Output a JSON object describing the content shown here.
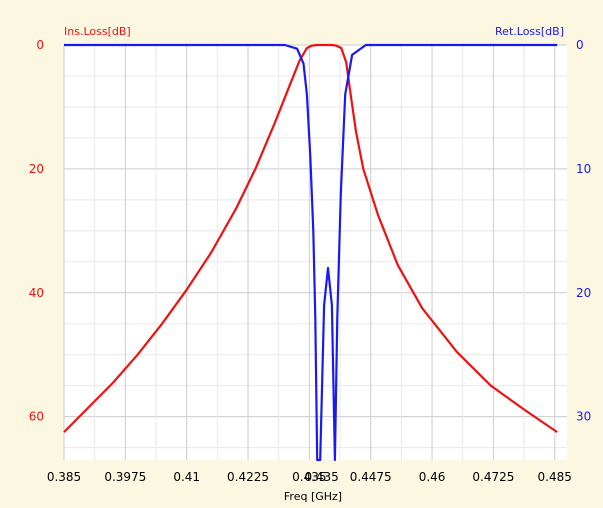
{
  "colors": {
    "background": "#fcf7e1",
    "plot_area": "#ffffff",
    "grid_major": "#cccccc",
    "grid_minor": "#e8e8e8",
    "ins_loss": "#ee1111",
    "ret_loss": "#1a1aee",
    "x_tick_text": "#000000"
  },
  "chart_data": {
    "type": "line",
    "title": "",
    "xlabel": "Freq [GHz]",
    "ylabel_left": "Ins.Loss[dB]",
    "ylabel_right": "Ret.Loss[dB]",
    "xlim": [
      0.385,
      0.4875
    ],
    "ylim_left": [
      0,
      67
    ],
    "ylim_right": [
      0,
      33.5
    ],
    "y_inverted": true,
    "grid": true,
    "legend": "none",
    "x_ticks": [
      "0.385",
      "0.3975",
      "0.41",
      "0.4225",
      "0.435",
      "0.4475",
      "0.46",
      "0.4725",
      "0.485"
    ],
    "x_tick_values": [
      0.385,
      0.3975,
      0.41,
      0.4225,
      0.435,
      0.4475,
      0.46,
      0.4725,
      0.485
    ],
    "x_tick_second_label": "0.435",
    "y_ticks_left": [
      "0",
      "20",
      "40",
      "60"
    ],
    "y_tick_values_left": [
      0,
      20,
      40,
      60
    ],
    "y_ticks_right": [
      "0",
      "10",
      "20",
      "30"
    ],
    "y_tick_values_right": [
      0,
      10,
      20,
      30
    ],
    "series": [
      {
        "name": "Ins.Loss[dB]",
        "axis": "left",
        "color": "#ee1111",
        "x": [
          0.385,
          0.39,
          0.395,
          0.4,
          0.405,
          0.41,
          0.415,
          0.42,
          0.424,
          0.428,
          0.431,
          0.433,
          0.4345,
          0.4355,
          0.4365,
          0.438,
          0.4395,
          0.4405,
          0.4415,
          0.4425,
          0.4435,
          0.4445,
          0.446,
          0.449,
          0.453,
          0.458,
          0.465,
          0.472,
          0.479,
          0.4855
        ],
        "y": [
          62.5,
          58.5,
          54.5,
          50,
          45,
          39.5,
          33.5,
          26.5,
          20,
          12.5,
          6.5,
          2.5,
          0.5,
          0.1,
          0,
          0,
          0,
          0.1,
          0.5,
          2.8,
          8.5,
          14,
          20,
          27.5,
          35.5,
          42.5,
          49.5,
          55,
          59,
          62.5
        ]
      },
      {
        "name": "Ret.Loss[dB]",
        "axis": "right",
        "color": "#1a1aee",
        "x": [
          0.385,
          0.41,
          0.43,
          0.4325,
          0.4338,
          0.4345,
          0.4352,
          0.4358,
          0.4362,
          0.4366,
          0.4372,
          0.438,
          0.4388,
          0.4396,
          0.4402,
          0.4407,
          0.4414,
          0.4423,
          0.4437,
          0.4465,
          0.4855
        ],
        "y": [
          0,
          0,
          0,
          0.3,
          1.5,
          4,
          9,
          15,
          22,
          33.5,
          33.5,
          21,
          18,
          21,
          33.5,
          22,
          12,
          4,
          0.8,
          0,
          0
        ]
      }
    ]
  }
}
